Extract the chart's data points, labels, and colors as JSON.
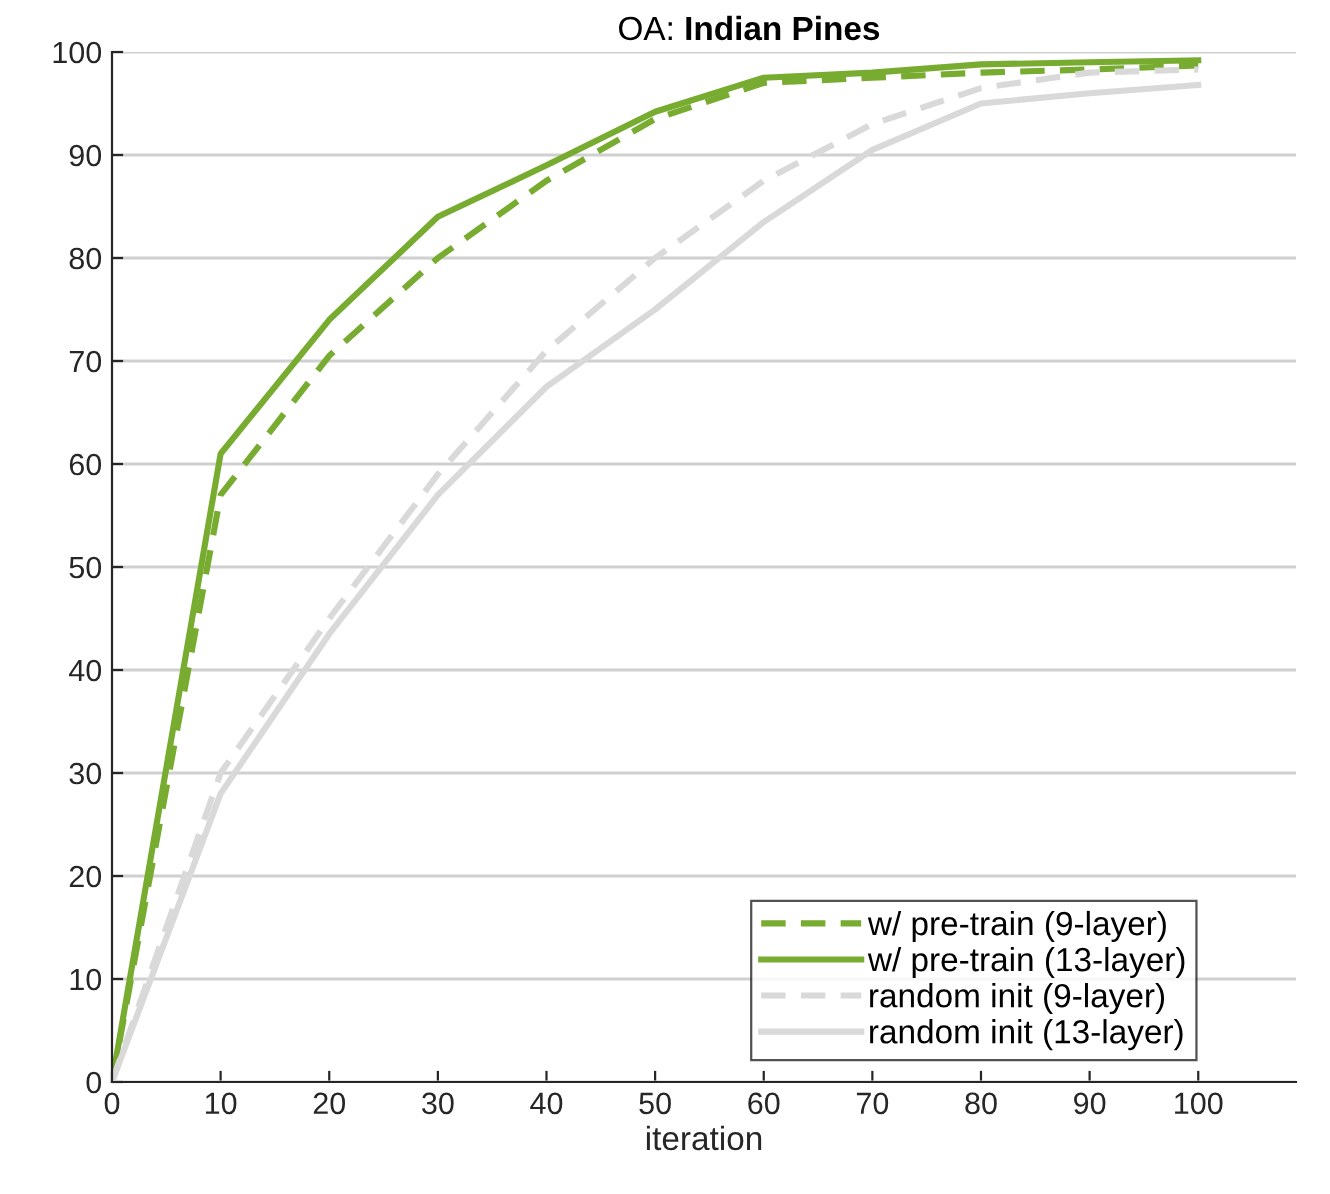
{
  "chart_data": {
    "type": "line",
    "title": "OA: Indian Pines",
    "xlabel": "iteration",
    "x": [
      0,
      10,
      20,
      30,
      40,
      50,
      60,
      70,
      80,
      90,
      100
    ],
    "series": [
      {
        "name": "w/ pre-train (9-layer)",
        "color": "#77ac30",
        "line_style": "dashed",
        "values": [
          0,
          57,
          70.5,
          80,
          87.5,
          93.5,
          97,
          97.5,
          98,
          98.3,
          98.7
        ]
      },
      {
        "name": "w/ pre-train (13-layer)",
        "color": "#77ac30",
        "line_style": "solid",
        "values": [
          0,
          61,
          74,
          84,
          89,
          94.2,
          97.5,
          98,
          98.8,
          99,
          99.2
        ]
      },
      {
        "name": "random init (9-layer)",
        "color": "#d9d9d9",
        "line_style": "dashed",
        "values": [
          0,
          30,
          45,
          59,
          71,
          80,
          87.5,
          93,
          96.5,
          98,
          98.3
        ]
      },
      {
        "name": "random init (13-layer)",
        "color": "#d9d9d9",
        "line_style": "solid",
        "values": [
          0,
          28,
          43.5,
          57,
          67.5,
          75,
          83.5,
          90.5,
          95,
          96,
          96.8
        ]
      }
    ],
    "xlim": [
      0,
      109
    ],
    "ylim": [
      0,
      100
    ],
    "xticks": [
      0,
      10,
      20,
      30,
      40,
      50,
      60,
      70,
      80,
      90,
      100
    ],
    "yticks": [
      0,
      10,
      20,
      30,
      40,
      50,
      60,
      70,
      80,
      90,
      100
    ],
    "grid": "y",
    "legend": "bottom right",
    "marker": "none"
  }
}
